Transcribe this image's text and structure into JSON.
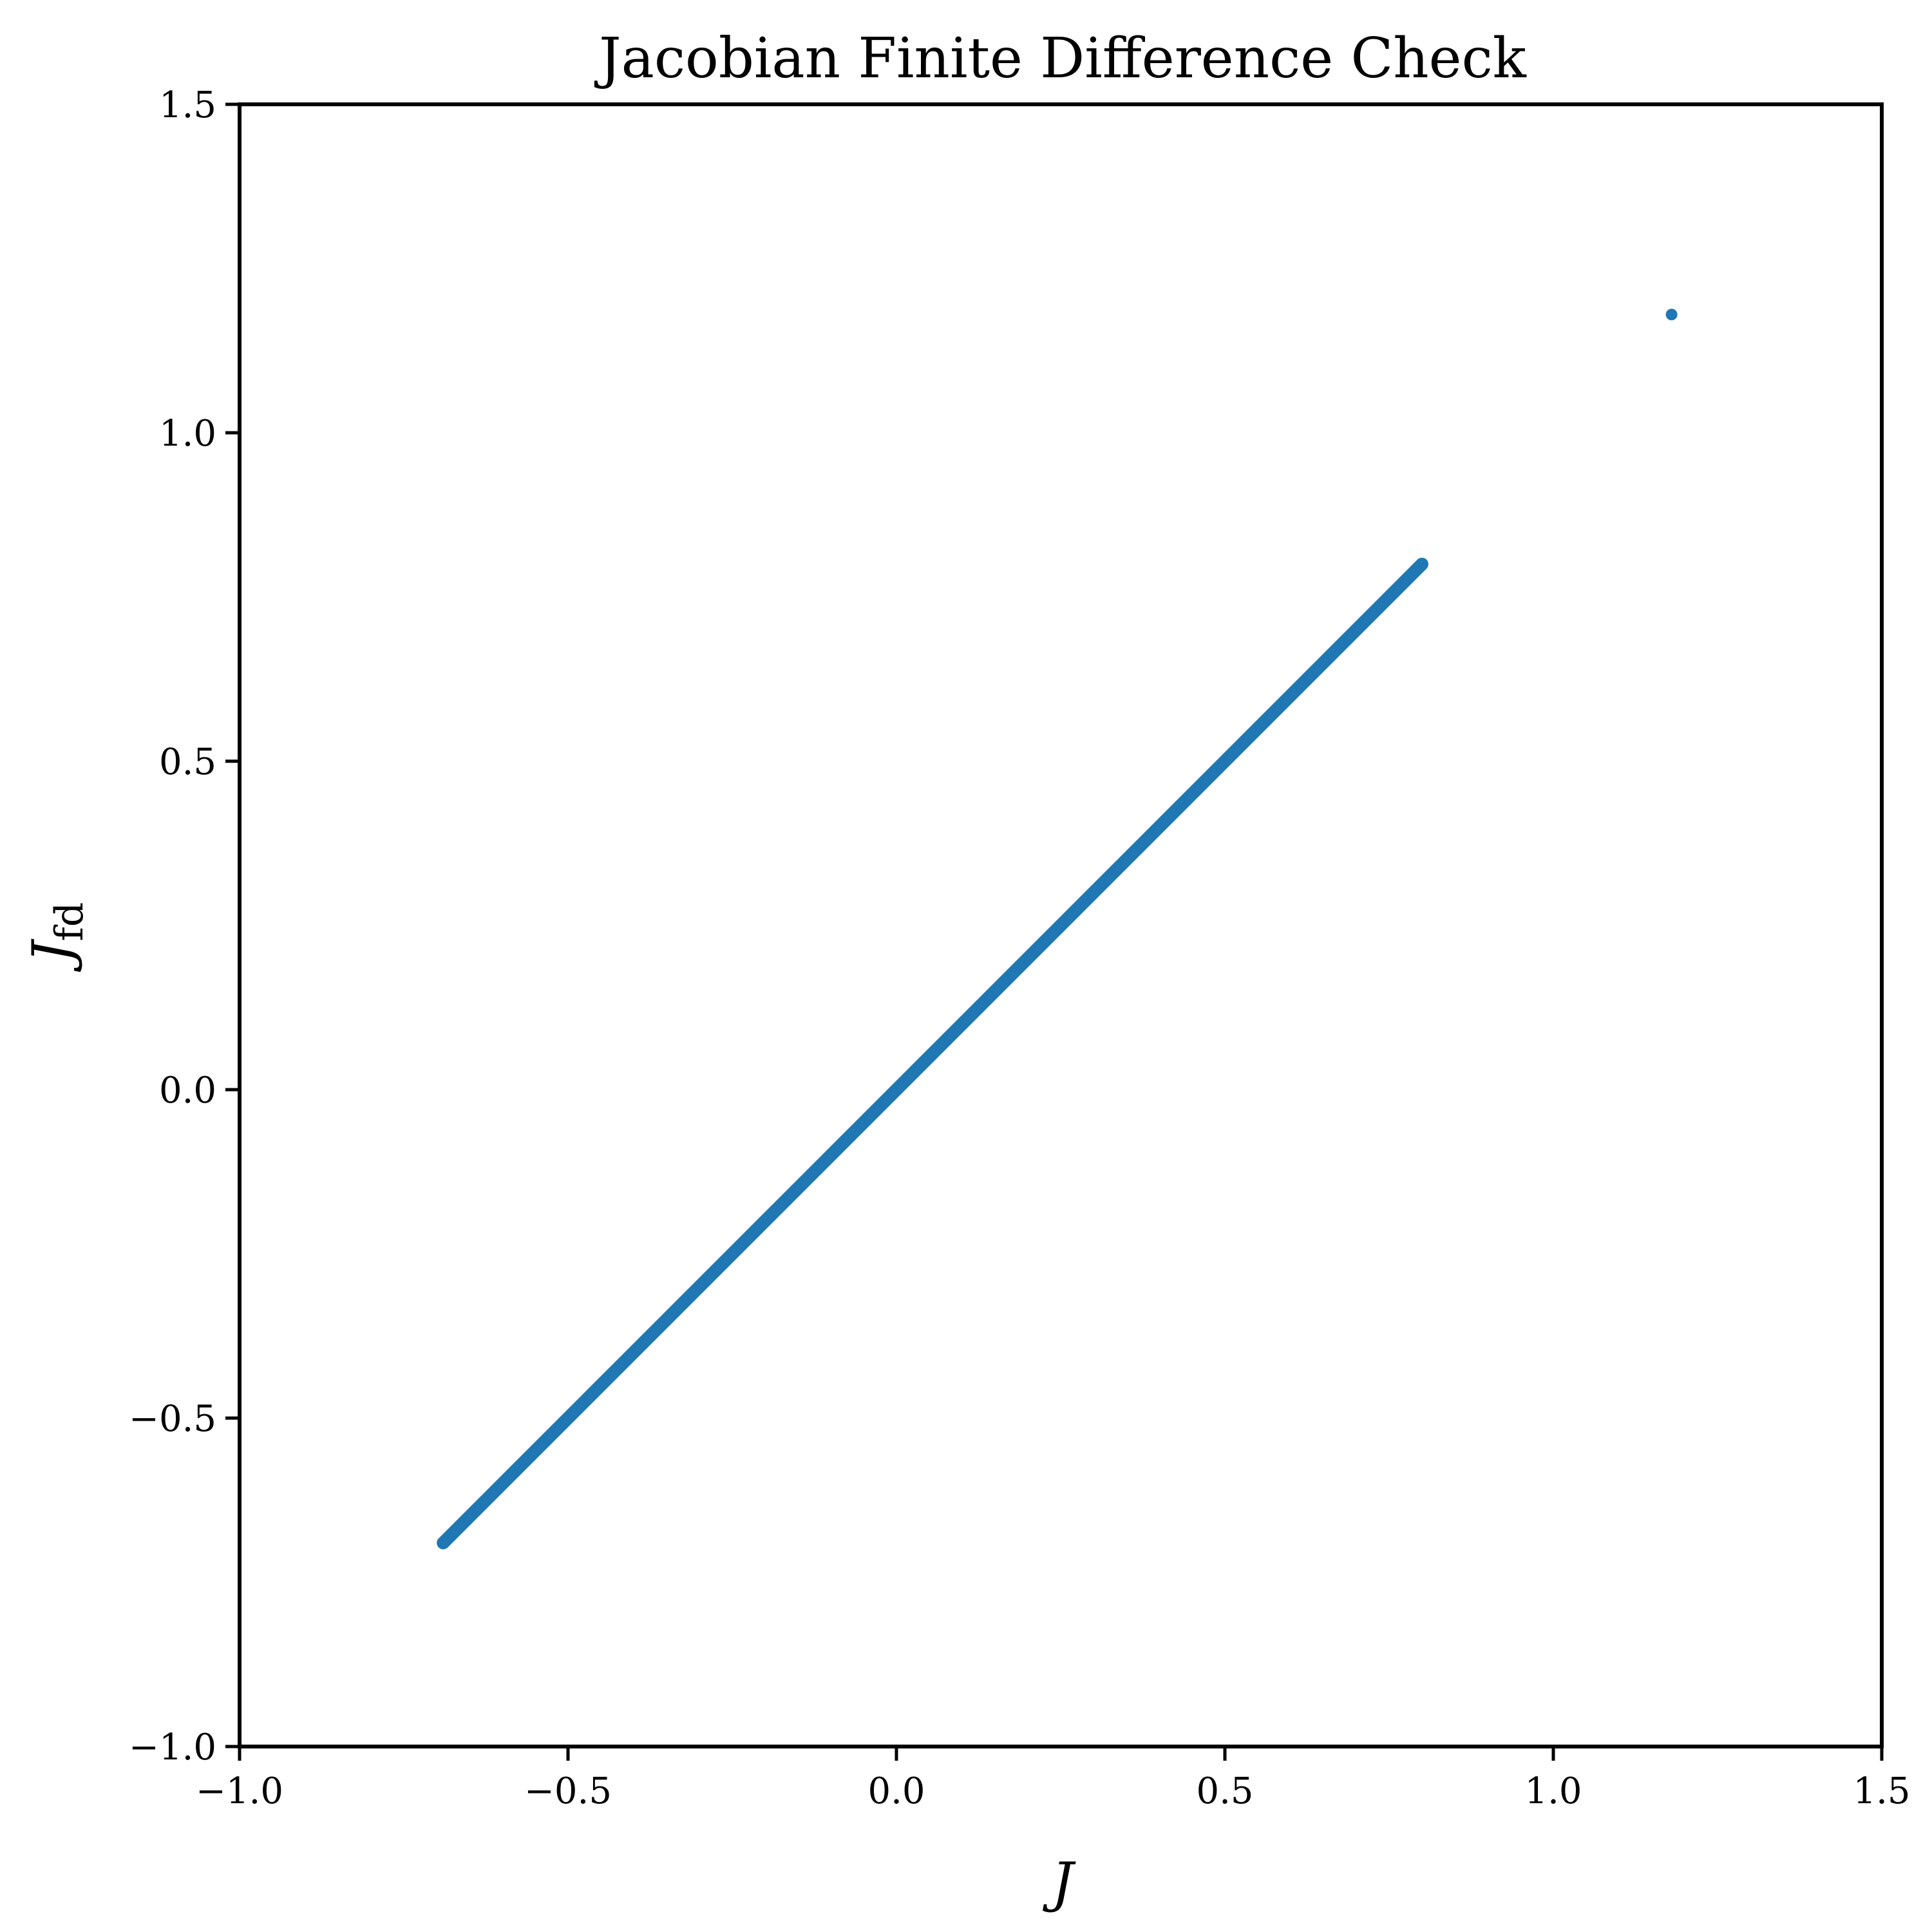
{
  "chart_data": {
    "type": "scatter",
    "title": "Jacobian Finite Difference Check",
    "xlabel": "J",
    "ylabel": {
      "main": "J",
      "subscript": "fd"
    },
    "xlim": [
      -1.0,
      1.5
    ],
    "ylim": [
      -1.0,
      1.5
    ],
    "xticks": [
      -1.0,
      -0.5,
      0.0,
      0.5,
      1.0,
      1.5
    ],
    "yticks": [
      -1.0,
      -0.5,
      0.0,
      0.5,
      1.0,
      1.5
    ],
    "xtick_labels": [
      "−1.0",
      "−0.5",
      "0.0",
      "0.5",
      "1.0",
      "1.5"
    ],
    "ytick_labels": [
      "−1.0",
      "−0.5",
      "0.0",
      "0.5",
      "1.0",
      "1.5"
    ],
    "grid": false,
    "series": [
      {
        "color": "#1f77b4",
        "diagonal_cluster": {
          "x_range": [
            -0.69,
            0.8
          ],
          "relation": "y = x"
        },
        "points": [
          {
            "x": 1.18,
            "y": 1.18
          }
        ]
      }
    ]
  }
}
